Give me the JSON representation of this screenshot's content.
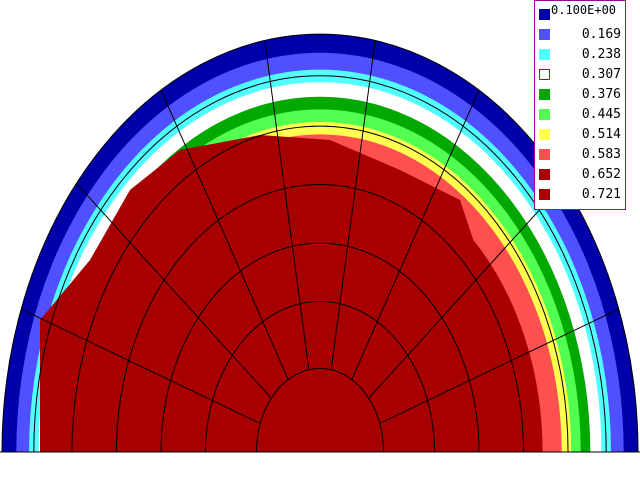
{
  "chart_data": {
    "type": "heatmap",
    "title": "",
    "colorbar": {
      "levels": [
        {
          "label": "0.100E+00",
          "value": 0.1,
          "color": "#0000a8"
        },
        {
          "label": "0.169",
          "value": 0.169,
          "color": "#5050ff"
        },
        {
          "label": "0.238",
          "value": 0.238,
          "color": "#50ffff"
        },
        {
          "label": "0.307",
          "value": 0.307,
          "color": "#ffffff"
        },
        {
          "label": "0.376",
          "value": 0.376,
          "color": "#00a800"
        },
        {
          "label": "0.445",
          "value": 0.445,
          "color": "#50ff50"
        },
        {
          "label": "0.514",
          "value": 0.514,
          "color": "#ffff50"
        },
        {
          "label": "0.583",
          "value": 0.583,
          "color": "#ff5050"
        },
        {
          "label": "0.652",
          "value": 0.652,
          "color": "#a80000"
        },
        {
          "label": "0.721",
          "value": 0.721,
          "color": "#a80000"
        }
      ]
    },
    "legend_placement": "top-right",
    "grid": true
  }
}
